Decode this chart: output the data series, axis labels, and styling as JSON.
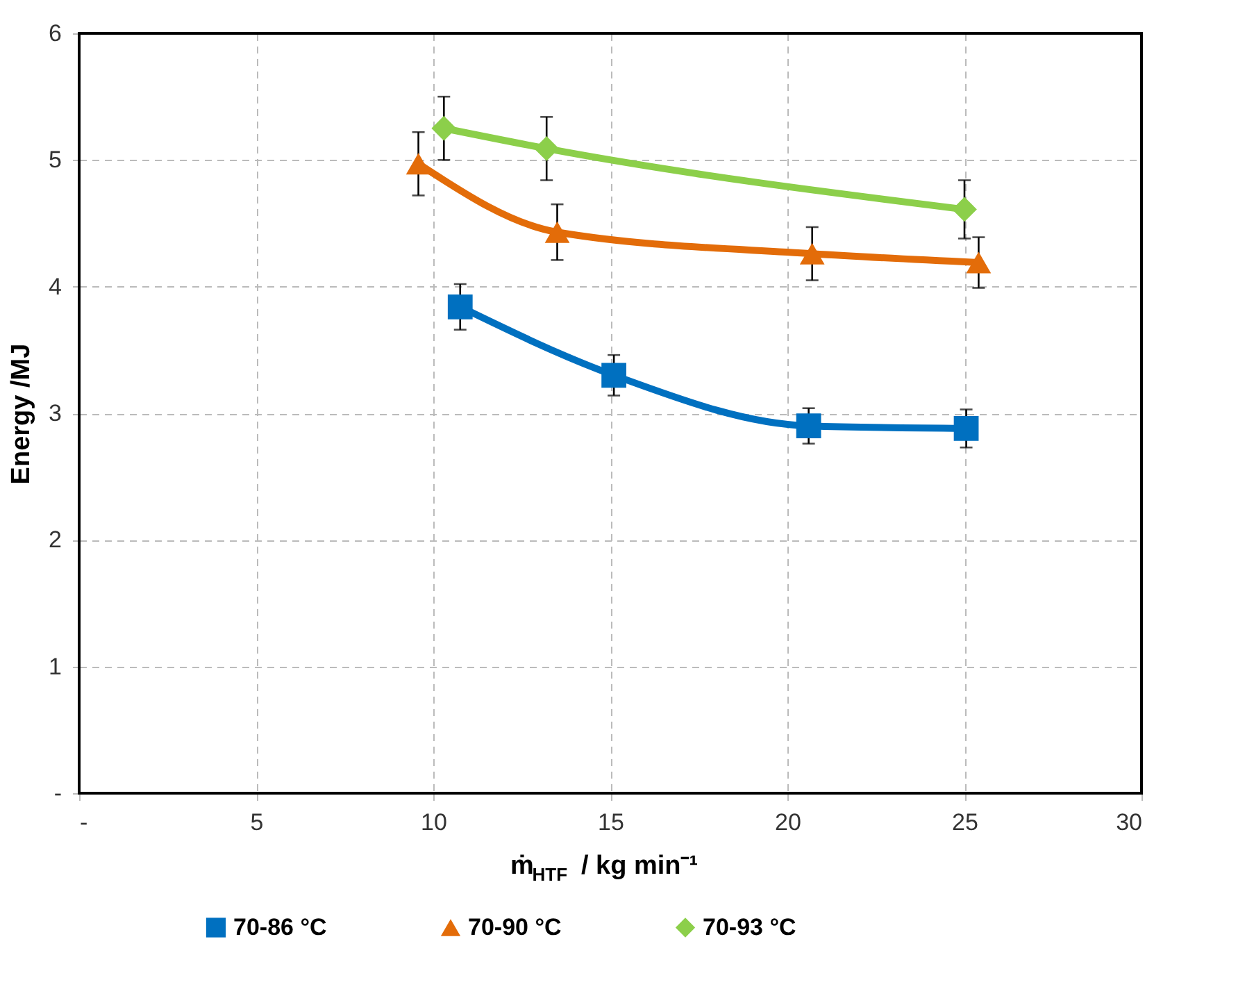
{
  "chart_data": {
    "type": "line",
    "xlabel": "ṁ$_{HTF}$ / kg min⁻¹",
    "ylabel": "Energy /MJ",
    "xlim": [
      0,
      30
    ],
    "xticks": [
      {
        "value": 0,
        "label": "-"
      },
      5,
      10,
      15,
      20,
      25,
      30
    ],
    "ylim": [
      0,
      6
    ],
    "yticks": [
      {
        "value": 0,
        "label": "-"
      },
      1,
      2,
      3,
      4,
      5,
      6
    ],
    "grid": true,
    "legend": "bottom",
    "line_style": "solid",
    "series": [
      {
        "name": "70-86 °C",
        "color": "#0070c0",
        "marker": "square",
        "x": [
          10.76,
          15.1,
          20.6,
          25.05
        ],
        "values": [
          3.84,
          3.3,
          2.9,
          2.88
        ],
        "errors": [
          0.18,
          0.16,
          0.14,
          0.15
        ]
      },
      {
        "name": "70-90 °C",
        "color": "#e36c09",
        "marker": "triangle",
        "x": [
          9.58,
          13.5,
          20.7,
          25.4
        ],
        "values": [
          4.97,
          4.43,
          4.26,
          4.19
        ],
        "errors": [
          0.25,
          0.22,
          0.21,
          0.2
        ]
      },
      {
        "name": "70-93 °C",
        "color": "#8ccf4a",
        "marker": "diamond",
        "x": [
          10.3,
          13.2,
          25.0
        ],
        "values": [
          5.25,
          5.09,
          4.61
        ],
        "errors": [
          0.25,
          0.25,
          0.23
        ]
      }
    ]
  }
}
